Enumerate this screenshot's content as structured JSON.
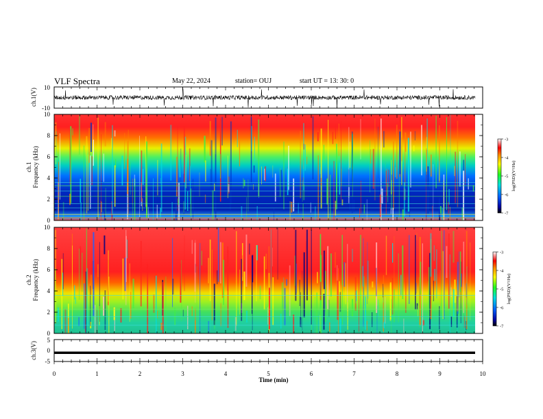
{
  "header": {
    "title": "VLF Spectra",
    "date": "May 22, 2024",
    "station": "station= OUJ",
    "start": "start  UT  =   13: 30: 0"
  },
  "chart_data": [
    {
      "type": "line",
      "panel": "ch1-waveform",
      "ylabel": "ch.1(V)",
      "yticks": [
        "10",
        "-10"
      ],
      "ylim": [
        -10,
        10
      ],
      "xlim": [
        0,
        10
      ],
      "baseline": 0
    },
    {
      "type": "heatmap",
      "panel": "ch1-spectrogram",
      "ylabel_line1": "ch.1",
      "ylabel_line2": "Frequency (kHz)",
      "ylim": [
        0,
        10
      ],
      "yticks": [
        "0",
        "2",
        "4",
        "6",
        "8",
        "10"
      ],
      "xlim": [
        0,
        10
      ],
      "colorbar": {
        "label": "log(PSD)(V²/Hz)",
        "ticks": [
          "-3",
          "-4",
          "-5",
          "-6",
          "-7"
        ],
        "range": [
          -7,
          -3
        ]
      }
    },
    {
      "type": "heatmap",
      "panel": "ch2-spectrogram",
      "ylabel_line1": "ch.2",
      "ylabel_line2": "Frequency (kHz)",
      "ylim": [
        0,
        10
      ],
      "yticks": [
        "0",
        "2",
        "4",
        "6",
        "8",
        "10"
      ],
      "xlim": [
        0,
        10
      ],
      "colorbar": {
        "label": "log(PSD)(V²/Hz)",
        "ticks": [
          "-3",
          "-4",
          "-5",
          "-6",
          "-7"
        ],
        "range": [
          -7,
          -3
        ]
      }
    },
    {
      "type": "line",
      "panel": "ch3-waveform",
      "ylabel": "ch.3(V)",
      "yticks": [
        "5",
        "0",
        "-5"
      ],
      "ylim": [
        -5,
        5
      ],
      "xlim": [
        0,
        10
      ],
      "baseline": -1
    }
  ],
  "xaxis": {
    "label": "Time  (min)",
    "ticks": [
      "0",
      "1",
      "2",
      "3",
      "4",
      "5",
      "6",
      "7",
      "8",
      "9",
      "10"
    ]
  }
}
